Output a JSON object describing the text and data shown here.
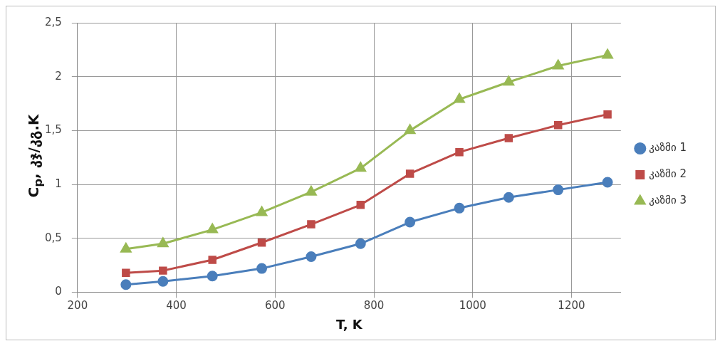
{
  "chart_data": {
    "type": "line",
    "xlabel": "T, K",
    "ylabel": "C$_{p}$,  კჯ/კგ.K",
    "x": [
      298,
      373,
      473,
      573,
      673,
      773,
      873,
      973,
      1073,
      1173,
      1273
    ],
    "series": [
      {
        "name": "კაზმი 1",
        "color": "#4a7ebb",
        "marker": "circle",
        "values": [
          0.07,
          0.1,
          0.15,
          0.22,
          0.33,
          0.45,
          0.65,
          0.78,
          0.88,
          0.95,
          1.02
        ]
      },
      {
        "name": "კაზმი 2",
        "color": "#be4b48",
        "marker": "square",
        "values": [
          0.18,
          0.2,
          0.3,
          0.46,
          0.63,
          0.81,
          1.1,
          1.3,
          1.43,
          1.55,
          1.65
        ]
      },
      {
        "name": "კაზმი 3",
        "color": "#98b954",
        "marker": "triangle",
        "values": [
          0.4,
          0.45,
          0.58,
          0.74,
          0.93,
          1.15,
          1.5,
          1.79,
          1.95,
          2.1,
          2.2
        ]
      }
    ],
    "xlim": [
      200,
      1300
    ],
    "xticks": [
      200,
      400,
      600,
      800,
      1000,
      1200
    ],
    "ylim": [
      0,
      2.5
    ],
    "yticks": [
      0,
      {
        "value": 0.5,
        "label": "0,5"
      },
      1,
      {
        "value": 1.5,
        "label": "1,5"
      },
      2,
      {
        "value": 2.5,
        "label": "2,5"
      }
    ],
    "grid": true,
    "legend": "right"
  }
}
